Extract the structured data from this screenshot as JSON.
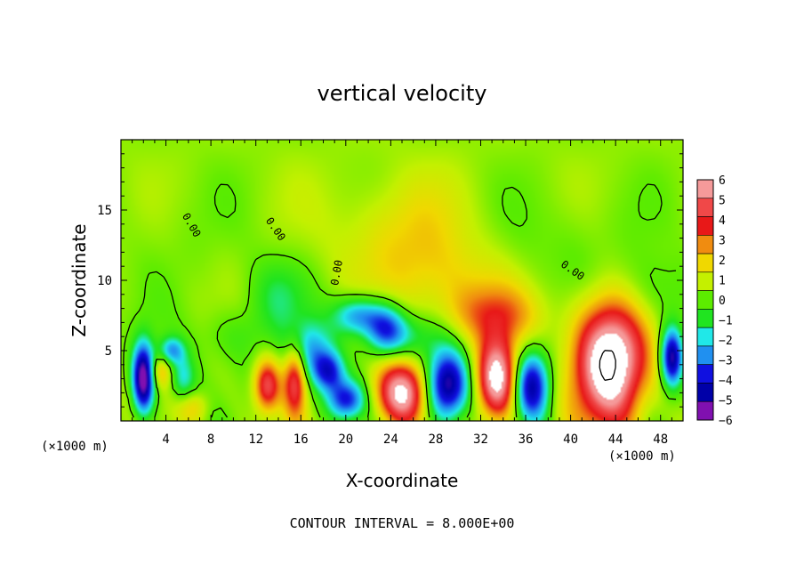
{
  "chart_data": {
    "type": "heatmap",
    "title": "vertical velocity",
    "xlabel": "X-coordinate",
    "ylabel": "Z-coordinate",
    "x_unit": "(×1000 m)",
    "x_unit_right": "(×1000 m)",
    "xlim": [
      0,
      50
    ],
    "ylim": [
      0,
      20
    ],
    "x_ticks": [
      4,
      8,
      12,
      16,
      20,
      24,
      28,
      32,
      36,
      40,
      44,
      48
    ],
    "y_ticks": [
      5,
      10,
      15
    ],
    "colorbar": {
      "levels": [
        6,
        5,
        4,
        3,
        2,
        1,
        0,
        -1,
        -2,
        -3,
        -4,
        -5,
        -6
      ],
      "labels": [
        "6",
        "5",
        "4",
        "3",
        "2",
        "1",
        "0",
        "−1",
        "−2",
        "−3",
        "−4",
        "−5",
        "−6"
      ],
      "colors": [
        "#f59a9a",
        "#f04848",
        "#e81818",
        "#f08c10",
        "#f0d800",
        "#c4f000",
        "#5cec00",
        "#20e420",
        "#20e8e8",
        "#2090f0",
        "#1010e0",
        "#0000a8",
        "#8010b0"
      ]
    },
    "background_value": 0.5,
    "features": [
      {
        "x": 2.0,
        "z": 3.0,
        "sx": 0.7,
        "sz": 1.8,
        "v": -7
      },
      {
        "x": 4.5,
        "z": 5.0,
        "sx": 0.8,
        "sz": 0.7,
        "v": -3
      },
      {
        "x": 5.5,
        "z": 3.0,
        "sx": 0.8,
        "sz": 1.2,
        "v": -2.5
      },
      {
        "x": 3.5,
        "z": 3.5,
        "sx": 0.7,
        "sz": 0.8,
        "v": 2
      },
      {
        "x": 6.5,
        "z": 1.0,
        "sx": 1.0,
        "sz": 0.8,
        "v": 1.5
      },
      {
        "x": 13.0,
        "z": 2.5,
        "sx": 0.8,
        "sz": 1.3,
        "v": 4.5
      },
      {
        "x": 15.5,
        "z": 3.0,
        "sx": 0.7,
        "sz": 1.8,
        "v": 4.5
      },
      {
        "x": 17.0,
        "z": 5.0,
        "sx": 1.5,
        "sz": 1.5,
        "v": -3
      },
      {
        "x": 18.5,
        "z": 3.5,
        "sx": 1.0,
        "sz": 1.0,
        "v": -4
      },
      {
        "x": 20.0,
        "z": 1.5,
        "sx": 1.2,
        "sz": 1.0,
        "v": -4.5
      },
      {
        "x": 21.0,
        "z": 7.5,
        "sx": 1.5,
        "sz": 1.0,
        "v": -3.5
      },
      {
        "x": 23.5,
        "z": 6.5,
        "sx": 1.3,
        "sz": 1.3,
        "v": -4
      },
      {
        "x": 25.0,
        "z": 2.0,
        "sx": 1.6,
        "sz": 1.6,
        "v": 6.5
      },
      {
        "x": 29.0,
        "z": 2.5,
        "sx": 1.4,
        "sz": 1.8,
        "v": -6.5
      },
      {
        "x": 26.0,
        "z": 6.0,
        "sx": 2.0,
        "sz": 1.2,
        "v": -1.5
      },
      {
        "x": 33.5,
        "z": 3.0,
        "sx": 1.3,
        "sz": 2.0,
        "v": 7
      },
      {
        "x": 36.5,
        "z": 2.5,
        "sx": 1.2,
        "sz": 1.8,
        "v": -5.5
      },
      {
        "x": 33.0,
        "z": 7.5,
        "sx": 3.0,
        "sz": 1.5,
        "v": 2.5
      },
      {
        "x": 43.5,
        "z": 4.2,
        "sx": 2.2,
        "sz": 3.2,
        "v": 8
      },
      {
        "x": 49.0,
        "z": 4.5,
        "sx": 0.7,
        "sz": 1.5,
        "v": -6
      },
      {
        "x": 47.0,
        "z": 9.0,
        "sx": 3.0,
        "sz": 2.0,
        "v": -1.2
      },
      {
        "x": 25.0,
        "z": 13.0,
        "sx": 4.0,
        "sz": 3.0,
        "v": 1.5
      },
      {
        "x": 30.0,
        "z": 10.0,
        "sx": 4.0,
        "sz": 2.0,
        "v": 1.0
      },
      {
        "x": 4.0,
        "z": 13.0,
        "sx": 3.0,
        "sz": 3.0,
        "v": -0.3
      },
      {
        "x": 14.0,
        "z": 9.0,
        "sx": 2.0,
        "sz": 2.0,
        "v": -1.5
      },
      {
        "x": 10.0,
        "z": 6.0,
        "sx": 2.5,
        "sz": 1.5,
        "v": -1.0
      },
      {
        "x": 40.0,
        "z": 12.0,
        "sx": 4.0,
        "sz": 3.0,
        "v": -0.6
      }
    ],
    "contour_label": "0.00",
    "contour_label_positions": [
      {
        "x": 6,
        "z": 13.8,
        "angle": 60
      },
      {
        "x": 13.5,
        "z": 13.5,
        "angle": 55
      },
      {
        "x": 19.5,
        "z": 10.5,
        "angle": -80
      },
      {
        "x": 40,
        "z": 10.5,
        "angle": 35
      }
    ],
    "footer": "CONTOUR INTERVAL = 8.000E+00"
  }
}
